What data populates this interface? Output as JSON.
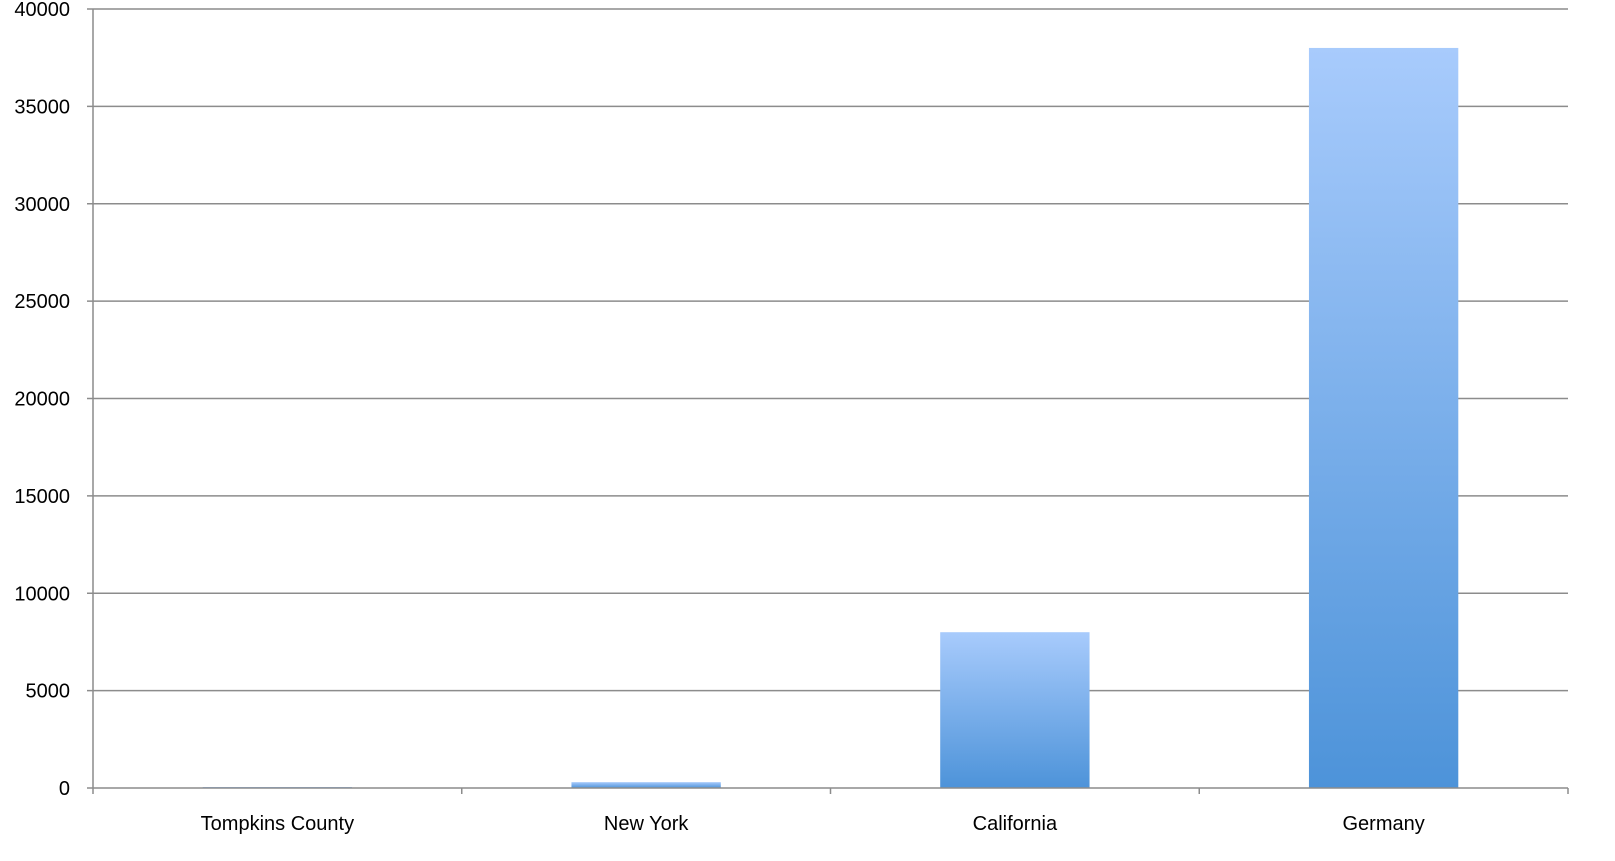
{
  "chart_data": {
    "type": "bar",
    "title": "",
    "xlabel": "",
    "ylabel": "",
    "categories": [
      "Tompkins County",
      "New York",
      "California",
      "Germany"
    ],
    "values": [
      40,
      300,
      8000,
      38000
    ],
    "ylim": [
      0,
      40000
    ],
    "yticks": [
      "0",
      "5000",
      "10000",
      "15000",
      "20000",
      "25000",
      "30000",
      "35000",
      "40000"
    ],
    "grid": true,
    "legend": "none",
    "colors": {
      "bar_top": "#a8cbfc",
      "bar_bottom": "#4d93d9",
      "grid": "#8c8c8c",
      "axis": "#8c8c8c"
    }
  }
}
